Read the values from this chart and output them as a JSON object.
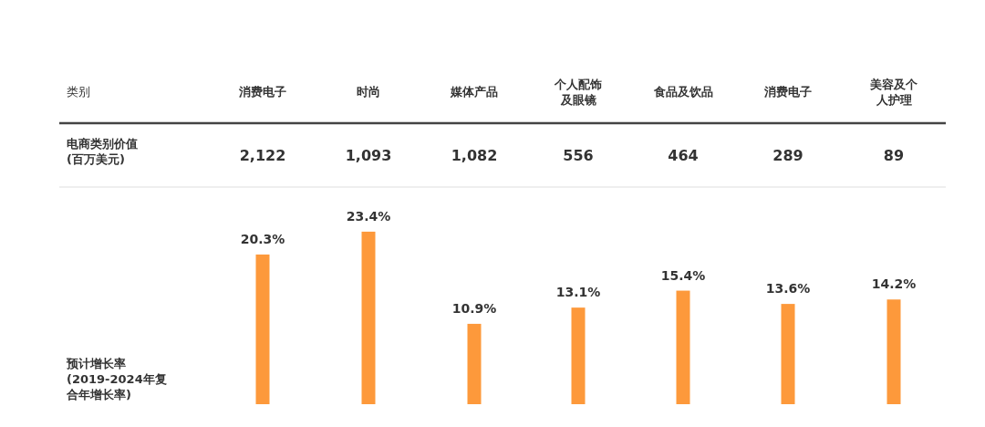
{
  "chart_data": [
    {
      "type": "other",
      "xlabel": "类别",
      "ylabel": "电商类别价值(百万美元)",
      "categories": [
        "消费电子",
        "时尚",
        "媒体产品",
        "个人配饰及眼镜",
        "食品及饮品",
        "消费电子",
        "美容及个人护理"
      ],
      "values": [
        2122,
        1093,
        1082,
        556,
        464,
        289,
        89
      ],
      "value_labels": [
        "2,122",
        "1,093",
        "1,082",
        "556",
        "464",
        "289",
        "89"
      ]
    },
    {
      "type": "bar",
      "ylabel": "预计增长率(2019-2024年复合年增长率)",
      "categories": [
        null,
        null,
        null,
        null,
        null,
        null,
        null
      ],
      "values": [
        20.3,
        23.4,
        10.9,
        13.1,
        15.4,
        13.6,
        14.2
      ],
      "value_labels": [
        "20.3%",
        "23.4%",
        "10.9%",
        "13.1%",
        "15.4%",
        "13.6%",
        "14.2%"
      ],
      "color": "#fd993b"
    }
  ]
}
